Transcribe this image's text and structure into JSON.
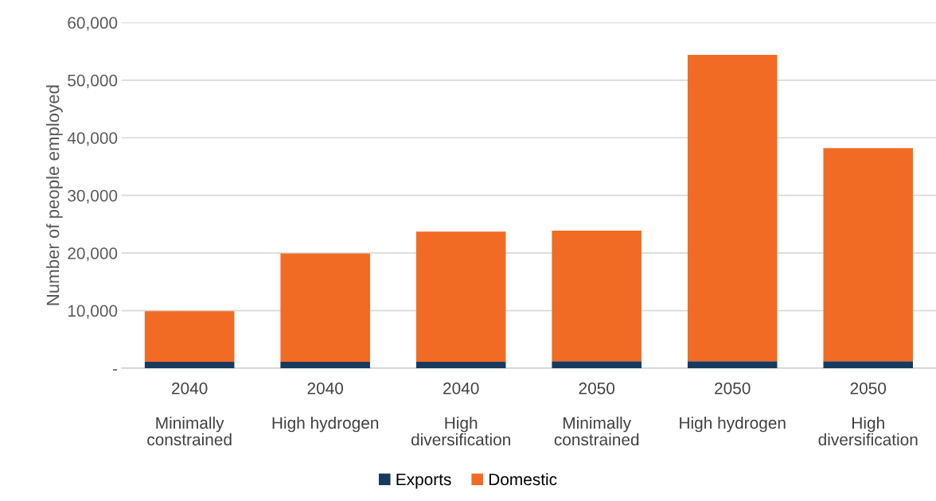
{
  "chart_data": {
    "type": "bar",
    "stacked": true,
    "ylabel": "Number of people employed",
    "categories": [
      "2040\nMinimally\nconstrained",
      "2040\nHigh hydrogen",
      "2040\nHigh\ndiversification",
      "2050\nMinimally\nconstrained",
      "2050\nHigh hydrogen",
      "2050\nHigh\ndiversification"
    ],
    "series": [
      {
        "name": "Exports",
        "color": "#173a5e",
        "values": [
          1100,
          1100,
          1100,
          1200,
          1200,
          1200
        ]
      },
      {
        "name": "Domestic",
        "color": "#f26b24",
        "values": [
          8800,
          18800,
          22600,
          22700,
          53200,
          37000
        ]
      }
    ],
    "ylim": [
      0,
      60000
    ],
    "yticks": [
      {
        "value": 0,
        "label": "-"
      },
      {
        "value": 10000,
        "label": "10,000"
      },
      {
        "value": 20000,
        "label": "20,000"
      },
      {
        "value": 30000,
        "label": "30,000"
      },
      {
        "value": 40000,
        "label": "40,000"
      },
      {
        "value": 50000,
        "label": "50,000"
      },
      {
        "value": 60000,
        "label": "60,000"
      }
    ],
    "grid": "y",
    "legend": "bottom"
  }
}
